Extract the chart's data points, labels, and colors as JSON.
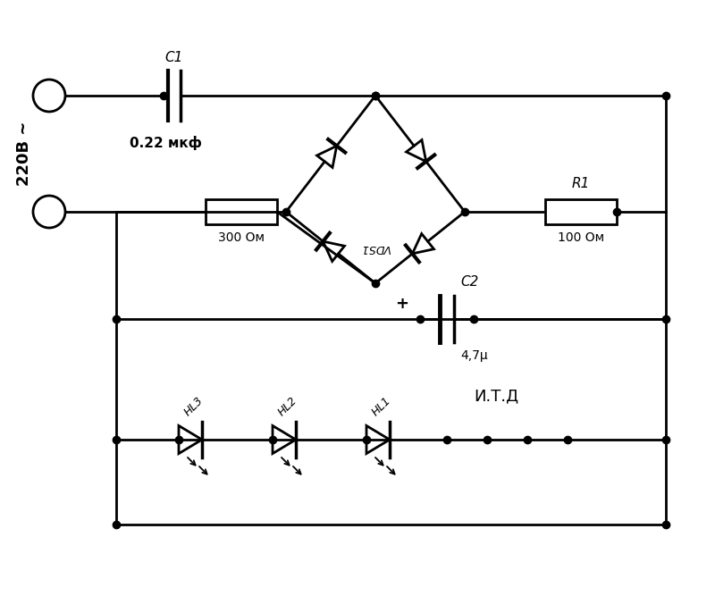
{
  "bg_color": "#ffffff",
  "line_color": "#000000",
  "line_width": 2.0,
  "label_220": "220В ~",
  "label_C1": "C1",
  "label_C1_val": "0.22 мкф",
  "label_R1": "R1",
  "label_R1_val": "100 Ом",
  "label_R_300": "300 Ом",
  "label_VDS": "VDS1",
  "label_C2": "C2",
  "label_C2_val": "4,7μ",
  "label_ITD": "И.Т.Д",
  "label_HL1": "HL1",
  "label_HL2": "HL2",
  "label_HL3": "HL3"
}
